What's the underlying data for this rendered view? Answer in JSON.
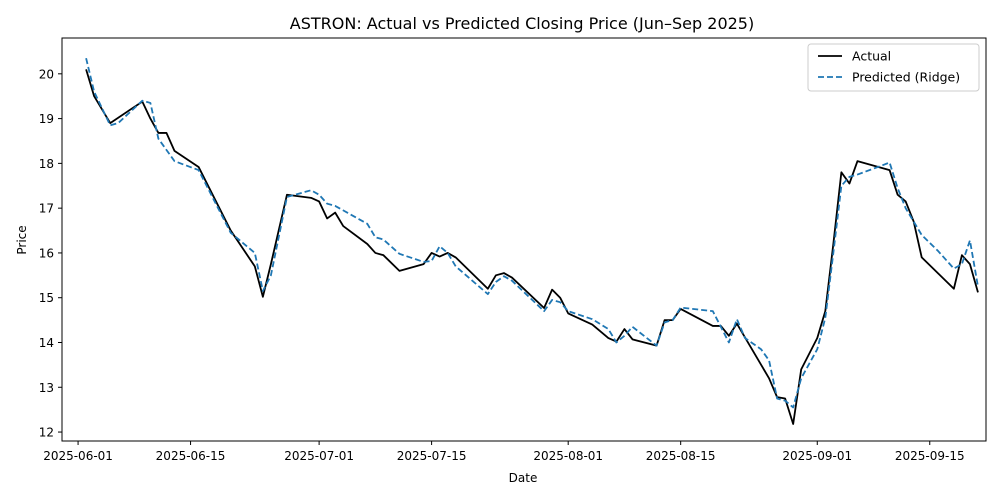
{
  "chart_data": {
    "type": "line",
    "title": "ASTRON: Actual vs Predicted Closing Price (Jun–Sep 2025)",
    "xlabel": "Date",
    "ylabel": "Price",
    "xlim": [
      "2025-05-30",
      "2025-09-22"
    ],
    "ylim": [
      11.8,
      20.8
    ],
    "x_ticks": [
      "2025-06-01",
      "2025-06-15",
      "2025-07-01",
      "2025-07-15",
      "2025-08-01",
      "2025-08-15",
      "2025-09-01",
      "2025-09-15"
    ],
    "y_ticks": [
      12,
      13,
      14,
      15,
      16,
      17,
      18,
      19,
      20
    ],
    "grid": false,
    "legend_position": "top-right",
    "series": [
      {
        "name": "Actual",
        "color": "#000000",
        "style": "solid",
        "points": [
          [
            "2025-06-02",
            20.1
          ],
          [
            "2025-06-03",
            19.5
          ],
          [
            "2025-06-05",
            18.9
          ],
          [
            "2025-06-09",
            19.38
          ],
          [
            "2025-06-10",
            19.0
          ],
          [
            "2025-06-11",
            18.68
          ],
          [
            "2025-06-12",
            18.68
          ],
          [
            "2025-06-13",
            18.28
          ],
          [
            "2025-06-16",
            17.92
          ],
          [
            "2025-06-20",
            16.5
          ],
          [
            "2025-06-23",
            15.7
          ],
          [
            "2025-06-24",
            15.02
          ],
          [
            "2025-06-25",
            15.75
          ],
          [
            "2025-06-27",
            17.3
          ],
          [
            "2025-06-30",
            17.23
          ],
          [
            "2025-07-01",
            17.15
          ],
          [
            "2025-07-02",
            16.77
          ],
          [
            "2025-07-03",
            16.9
          ],
          [
            "2025-07-04",
            16.6
          ],
          [
            "2025-07-07",
            16.2
          ],
          [
            "2025-07-08",
            16.0
          ],
          [
            "2025-07-09",
            15.95
          ],
          [
            "2025-07-11",
            15.6
          ],
          [
            "2025-07-14",
            15.75
          ],
          [
            "2025-07-15",
            16.0
          ],
          [
            "2025-07-16",
            15.92
          ],
          [
            "2025-07-17",
            16.0
          ],
          [
            "2025-07-18",
            15.9
          ],
          [
            "2025-07-22",
            15.2
          ],
          [
            "2025-07-23",
            15.5
          ],
          [
            "2025-07-24",
            15.55
          ],
          [
            "2025-07-25",
            15.45
          ],
          [
            "2025-07-29",
            14.77
          ],
          [
            "2025-07-30",
            15.18
          ],
          [
            "2025-07-31",
            15.0
          ],
          [
            "2025-08-01",
            14.65
          ],
          [
            "2025-08-04",
            14.4
          ],
          [
            "2025-08-06",
            14.1
          ],
          [
            "2025-08-07",
            14.02
          ],
          [
            "2025-08-08",
            14.3
          ],
          [
            "2025-08-09",
            14.07
          ],
          [
            "2025-08-12",
            13.93
          ],
          [
            "2025-08-13",
            14.5
          ],
          [
            "2025-08-14",
            14.5
          ],
          [
            "2025-08-15",
            14.75
          ],
          [
            "2025-08-19",
            14.37
          ],
          [
            "2025-08-20",
            14.37
          ],
          [
            "2025-08-21",
            14.15
          ],
          [
            "2025-08-22",
            14.42
          ],
          [
            "2025-08-26",
            13.2
          ],
          [
            "2025-08-27",
            12.78
          ],
          [
            "2025-08-28",
            12.75
          ],
          [
            "2025-08-29",
            12.18
          ],
          [
            "2025-08-30",
            13.4
          ],
          [
            "2025-09-01",
            14.1
          ],
          [
            "2025-09-02",
            14.7
          ],
          [
            "2025-09-03",
            16.2
          ],
          [
            "2025-09-04",
            17.8
          ],
          [
            "2025-09-05",
            17.55
          ],
          [
            "2025-09-06",
            18.05
          ],
          [
            "2025-09-10",
            17.85
          ],
          [
            "2025-09-11",
            17.3
          ],
          [
            "2025-09-12",
            17.15
          ],
          [
            "2025-09-13",
            16.7
          ],
          [
            "2025-09-14",
            15.9
          ],
          [
            "2025-09-18",
            15.2
          ],
          [
            "2025-09-19",
            15.95
          ],
          [
            "2025-09-20",
            15.75
          ],
          [
            "2025-09-21",
            15.12
          ]
        ]
      },
      {
        "name": "Predicted (Ridge)",
        "color": "#1f77b4",
        "style": "dashed",
        "points": [
          [
            "2025-06-02",
            20.35
          ],
          [
            "2025-06-03",
            19.6
          ],
          [
            "2025-06-05",
            18.85
          ],
          [
            "2025-06-06",
            18.9
          ],
          [
            "2025-06-09",
            19.4
          ],
          [
            "2025-06-10",
            19.35
          ],
          [
            "2025-06-11",
            18.55
          ],
          [
            "2025-06-13",
            18.05
          ],
          [
            "2025-06-16",
            17.85
          ],
          [
            "2025-06-20",
            16.45
          ],
          [
            "2025-06-23",
            16.0
          ],
          [
            "2025-06-24",
            15.15
          ],
          [
            "2025-06-25",
            15.5
          ],
          [
            "2025-06-27",
            17.25
          ],
          [
            "2025-06-30",
            17.4
          ],
          [
            "2025-07-01",
            17.3
          ],
          [
            "2025-07-02",
            17.1
          ],
          [
            "2025-07-03",
            17.05
          ],
          [
            "2025-07-04",
            16.95
          ],
          [
            "2025-07-07",
            16.65
          ],
          [
            "2025-07-08",
            16.35
          ],
          [
            "2025-07-09",
            16.3
          ],
          [
            "2025-07-11",
            15.98
          ],
          [
            "2025-07-14",
            15.8
          ],
          [
            "2025-07-15",
            15.82
          ],
          [
            "2025-07-16",
            16.15
          ],
          [
            "2025-07-17",
            16.0
          ],
          [
            "2025-07-18",
            15.7
          ],
          [
            "2025-07-22",
            15.08
          ],
          [
            "2025-07-23",
            15.35
          ],
          [
            "2025-07-24",
            15.48
          ],
          [
            "2025-07-25",
            15.38
          ],
          [
            "2025-07-29",
            14.7
          ],
          [
            "2025-07-30",
            14.95
          ],
          [
            "2025-07-31",
            14.9
          ],
          [
            "2025-08-01",
            14.7
          ],
          [
            "2025-08-04",
            14.52
          ],
          [
            "2025-08-06",
            14.3
          ],
          [
            "2025-08-07",
            14.0
          ],
          [
            "2025-08-08",
            14.15
          ],
          [
            "2025-08-09",
            14.35
          ],
          [
            "2025-08-12",
            13.93
          ],
          [
            "2025-08-13",
            14.45
          ],
          [
            "2025-08-14",
            14.5
          ],
          [
            "2025-08-15",
            14.78
          ],
          [
            "2025-08-19",
            14.7
          ],
          [
            "2025-08-21",
            14.0
          ],
          [
            "2025-08-22",
            14.52
          ],
          [
            "2025-08-23",
            14.1
          ],
          [
            "2025-08-25",
            13.85
          ],
          [
            "2025-08-26",
            13.6
          ],
          [
            "2025-08-27",
            12.75
          ],
          [
            "2025-08-28",
            12.7
          ],
          [
            "2025-08-29",
            12.55
          ],
          [
            "2025-08-30",
            13.2
          ],
          [
            "2025-09-01",
            13.85
          ],
          [
            "2025-09-02",
            14.55
          ],
          [
            "2025-09-03",
            16.0
          ],
          [
            "2025-09-04",
            17.5
          ],
          [
            "2025-09-05",
            17.7
          ],
          [
            "2025-09-06",
            17.75
          ],
          [
            "2025-09-09",
            17.95
          ],
          [
            "2025-09-10",
            18.02
          ],
          [
            "2025-09-11",
            17.45
          ],
          [
            "2025-09-12",
            17.0
          ],
          [
            "2025-09-14",
            16.4
          ],
          [
            "2025-09-16",
            16.05
          ],
          [
            "2025-09-18",
            15.65
          ],
          [
            "2025-09-19",
            15.75
          ],
          [
            "2025-09-20",
            16.28
          ],
          [
            "2025-09-21",
            15.25
          ]
        ]
      }
    ]
  }
}
